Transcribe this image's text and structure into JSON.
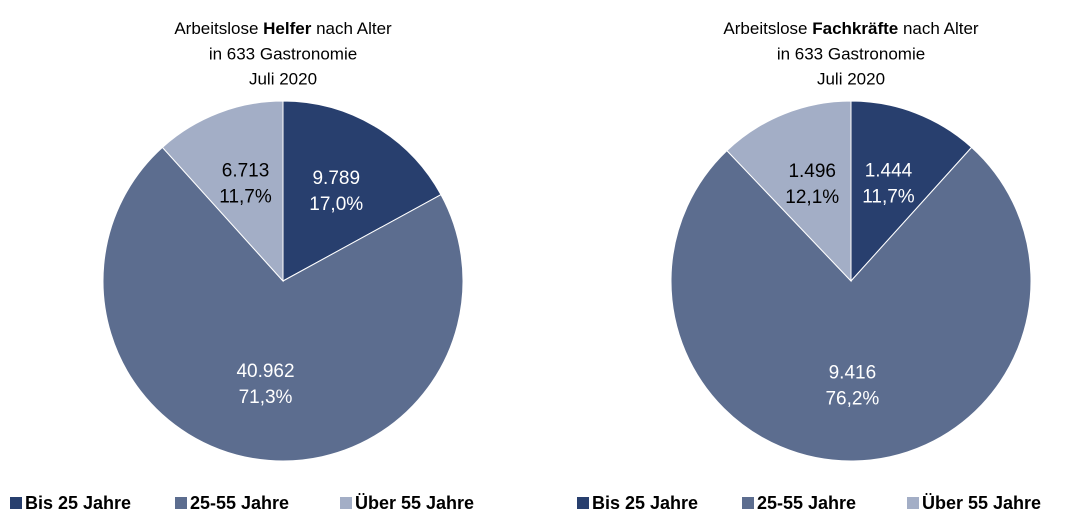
{
  "chart_data": [
    {
      "type": "pie",
      "title": "Arbeitslose",
      "title_highlight": "Helfer",
      "title_rest": "nach Alter",
      "subtitle_lines": [
        "in 633 Gastronomie",
        "Juli 2020"
      ],
      "categories": [
        "Bis 25 Jahre",
        "25-55 Jahre",
        "Über 55 Jahre"
      ],
      "values": [
        9789,
        40962,
        6713
      ],
      "value_labels": [
        "9.789",
        "40.962",
        "6.713"
      ],
      "percentages": [
        17.0,
        71.3,
        11.7
      ],
      "percentage_labels": [
        "17,0%",
        "71,3%",
        "11,7%"
      ],
      "colors": [
        "#283f6e",
        "#5c6d8f",
        "#a3aec6"
      ],
      "label_colors": [
        "#ffffff",
        "#ffffff",
        "#000000"
      ],
      "legend": "bottom"
    },
    {
      "type": "pie",
      "title": "Arbeitslose",
      "title_highlight": "Fachkräfte",
      "title_rest": "nach Alter",
      "subtitle_lines": [
        "in 633 Gastronomie",
        "Juli 2020"
      ],
      "categories": [
        "Bis 25 Jahre",
        "25-55 Jahre",
        "Über 55 Jahre"
      ],
      "values": [
        1444,
        9416,
        1496
      ],
      "value_labels": [
        "1.444",
        "9.416",
        "1.496"
      ],
      "percentages": [
        11.7,
        76.2,
        12.1
      ],
      "percentage_labels": [
        "11,7%",
        "76,2%",
        "12,1%"
      ],
      "colors": [
        "#283f6e",
        "#5c6d8f",
        "#a3aec6"
      ],
      "label_colors": [
        "#ffffff",
        "#ffffff",
        "#000000"
      ],
      "legend": "bottom"
    }
  ]
}
